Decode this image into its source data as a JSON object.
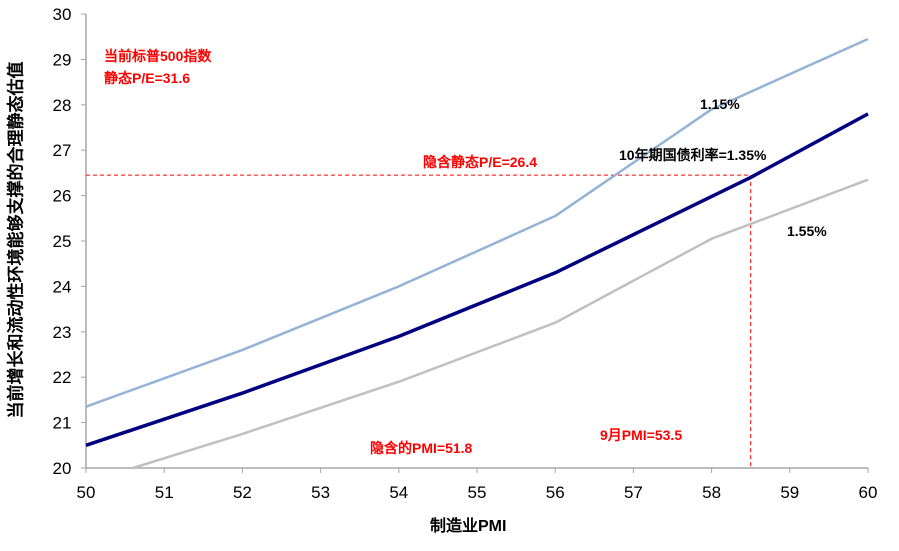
{
  "chart_data": {
    "type": "line",
    "title": "",
    "xlabel": "制造业PMI",
    "ylabel": "当前增长和流动性环境能够支撑的合理静态估值",
    "xlim": [
      50,
      60
    ],
    "ylim": [
      20,
      30
    ],
    "x_ticks": [
      "50",
      "51",
      "52",
      "53",
      "54",
      "55",
      "56",
      "57",
      "58",
      "59",
      "60"
    ],
    "y_ticks": [
      "20",
      "21",
      "22",
      "23",
      "24",
      "25",
      "26",
      "27",
      "28",
      "29",
      "30"
    ],
    "grid": false,
    "series": [
      {
        "name": "1.15%",
        "color": "#95b3d7",
        "x": [
          50,
          52,
          54,
          56,
          58,
          60
        ],
        "y": [
          21.35,
          22.6,
          24.0,
          25.55,
          27.9,
          29.45
        ]
      },
      {
        "name": "10年期国债利率=1.35%",
        "color": "#000080",
        "x": [
          50,
          52,
          54,
          56,
          58.5,
          60
        ],
        "y": [
          20.5,
          21.65,
          22.9,
          24.3,
          26.4,
          27.8
        ]
      },
      {
        "name": "1.55%",
        "color": "#c0c0c0",
        "x": [
          50.6,
          52,
          54,
          56,
          58,
          60
        ],
        "y": [
          20.0,
          20.75,
          21.9,
          23.2,
          25.05,
          26.35
        ]
      }
    ],
    "reference_lines": {
      "h_value": 26.45,
      "v_value": 58.5,
      "color": "#ff0000"
    },
    "annotations": {
      "current": "当前标普500指数",
      "current_pe": "静态P/E=31.6",
      "implied_pe": "隐含静态P/E=26.4",
      "label_115": "1.15%",
      "label_135": "10年期国债利率=1.35%",
      "label_155": "1.55%",
      "implied_pmi": "隐含的PMI=51.8",
      "sep_pmi": "9月PMI=53.5"
    }
  }
}
